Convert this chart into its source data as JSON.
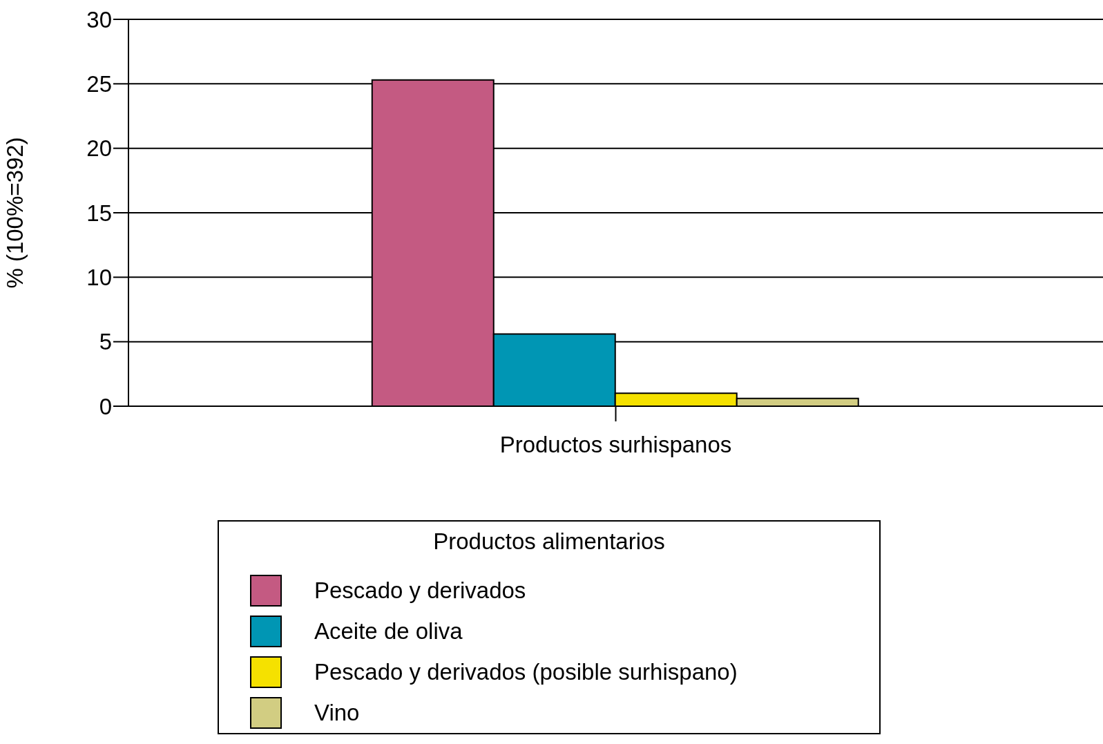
{
  "chart_data": {
    "type": "bar",
    "ylabel": "% (100%=392)",
    "legend_title": "Productos alimentarios",
    "categories": [
      "Productos surhispanos"
    ],
    "series": [
      {
        "name": "Pescado y derivados",
        "color": "#c45a82",
        "values": [
          25.3
        ]
      },
      {
        "name": "Aceite de oliva",
        "color": "#0096b4",
        "values": [
          5.6
        ]
      },
      {
        "name": "Pescado y derivados (posible surhispano)",
        "color": "#f5e100",
        "values": [
          1.0
        ]
      },
      {
        "name": "Vino",
        "color": "#d2cd82",
        "values": [
          0.6
        ]
      }
    ],
    "ylim": [
      0,
      30
    ],
    "yticks": [
      0,
      5,
      10,
      15,
      20,
      25,
      30
    ],
    "grid": "y",
    "legend": "bottom"
  }
}
